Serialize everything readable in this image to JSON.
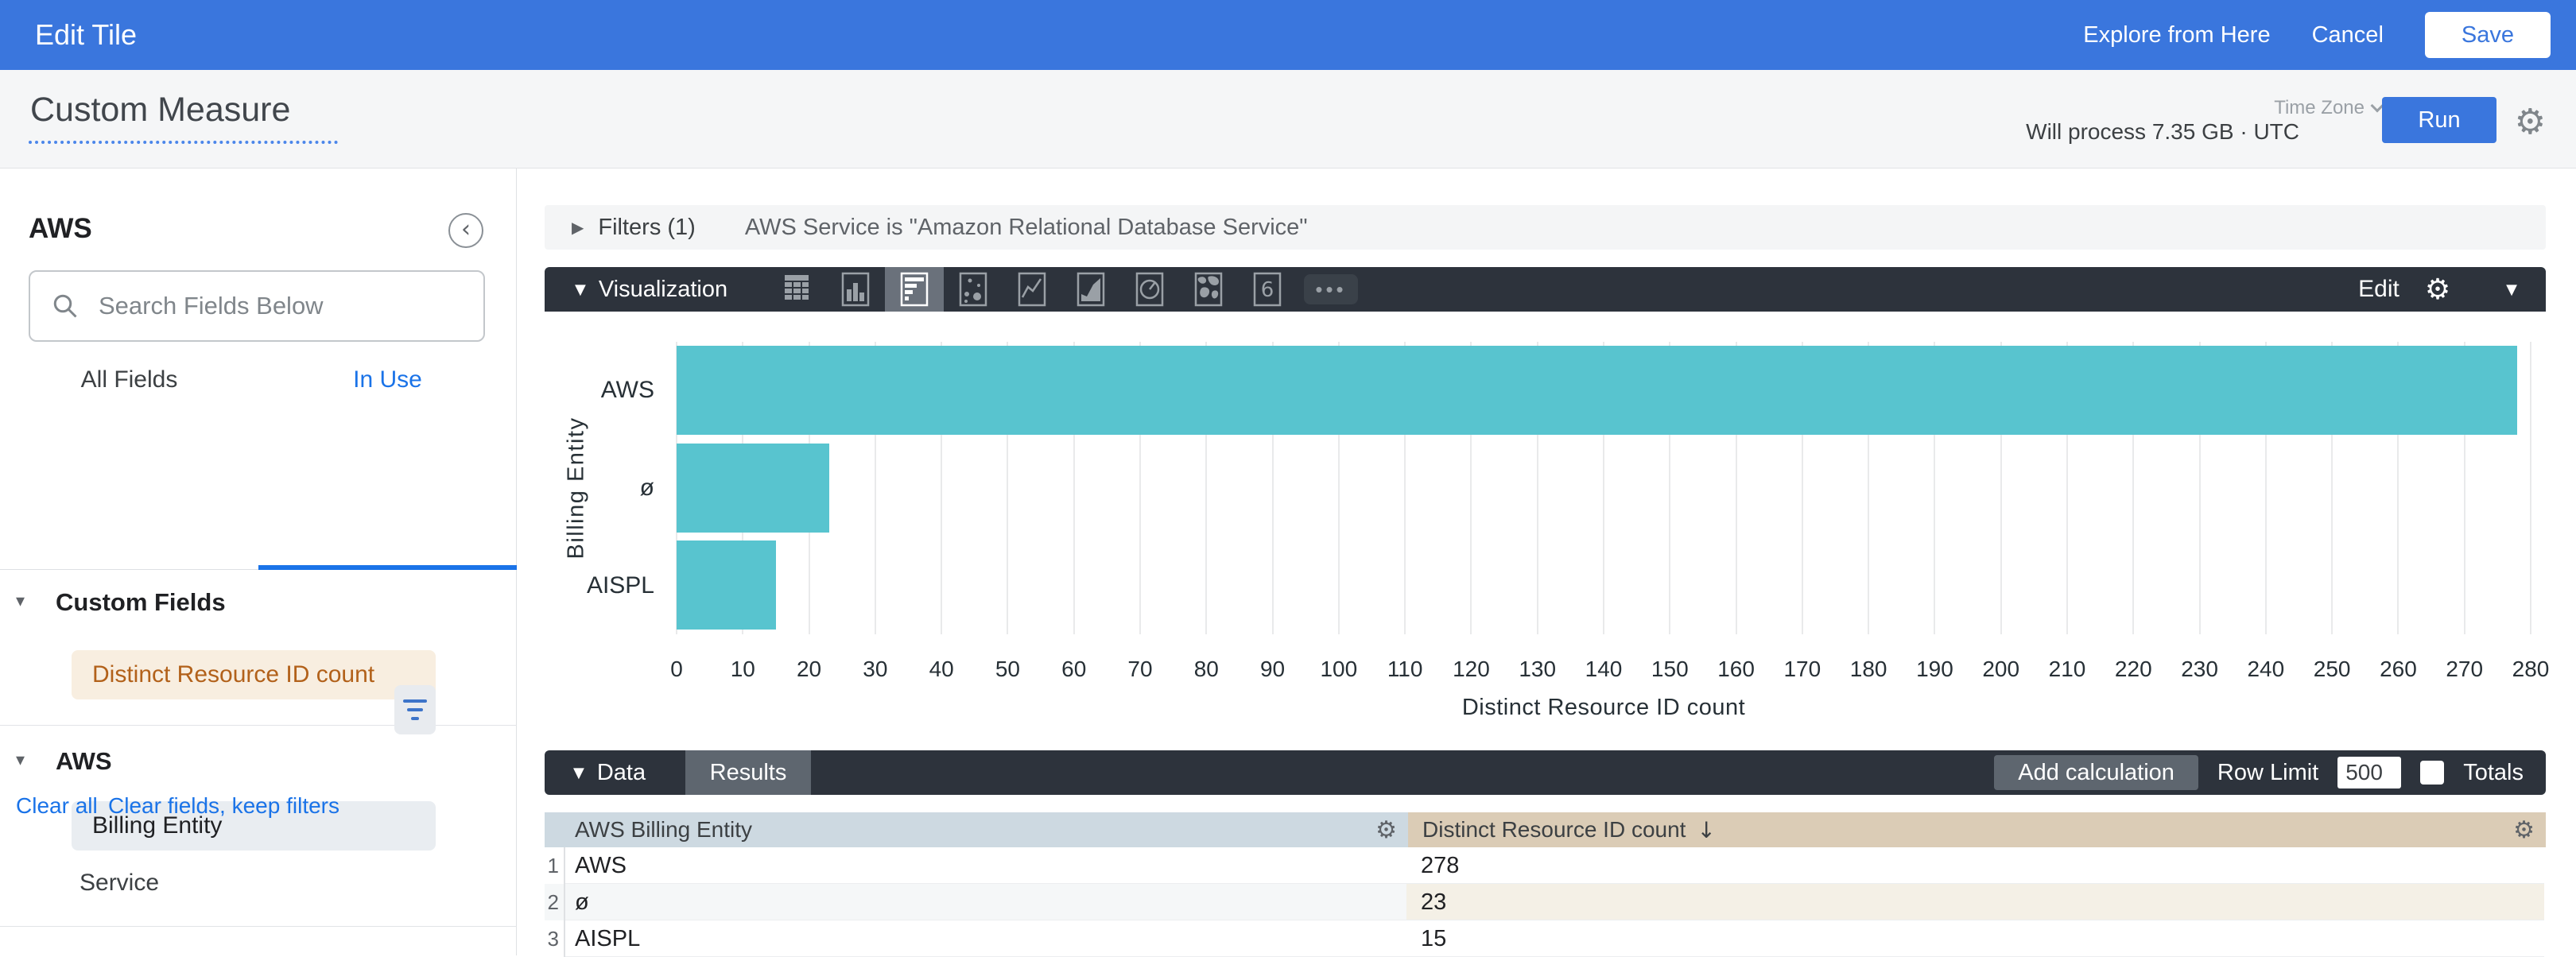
{
  "app": {
    "title": "Edit Tile",
    "explore_label": "Explore from Here",
    "cancel_label": "Cancel",
    "save_label": "Save"
  },
  "query_bar": {
    "title": "Custom Measure",
    "timezone_label": "Time Zone",
    "process_text": "Will process 7.35 GB · UTC",
    "run_label": "Run",
    "icons": [
      "gear-icon",
      "chevron-down-icon"
    ]
  },
  "sidebar": {
    "model_name": "AWS",
    "collapse_icon": "chevron-left-circle-icon",
    "search_placeholder": "Search Fields Below",
    "search_icon": "search-icon",
    "tabs": [
      {
        "label": "All Fields",
        "active": false
      },
      {
        "label": "In Use",
        "active": true
      }
    ],
    "sections": [
      {
        "label": "Custom Fields",
        "fields": [
          {
            "label": "Distinct Resource ID count",
            "type": "measure",
            "selected": true
          }
        ]
      },
      {
        "label": "AWS",
        "fields": [
          {
            "label": "Billing Entity",
            "type": "dimension",
            "selected": true
          },
          {
            "label": "Service",
            "type": "dimension",
            "selected": false,
            "filter_icon": "filter-list-icon"
          }
        ]
      }
    ],
    "clear_all_label": "Clear all",
    "clear_fields_label": "Clear fields, keep filters"
  },
  "filters": {
    "header": "Filters (1)",
    "summary": "AWS Service is \"Amazon Relational Database Service\""
  },
  "visualization": {
    "header": "Visualization",
    "edit_label": "Edit",
    "icons": [
      "table-chart-icon",
      "column-chart-icon",
      "bar-chart-icon",
      "scatter-chart-icon",
      "line-chart-icon",
      "area-chart-icon",
      "pie-chart-icon",
      "map-chart-icon",
      "single-value-icon",
      "more-viz-icon"
    ],
    "selected_icon": "bar-chart-icon",
    "settings_icons": [
      "gear-icon",
      "caret-down-icon"
    ]
  },
  "chart_data": {
    "type": "bar",
    "orientation": "horizontal",
    "title": "",
    "categories": [
      "AWS",
      "ø",
      "AISPL"
    ],
    "values": [
      278,
      23,
      15
    ],
    "series_name": "Distinct Resource ID count",
    "xlabel": "Distinct Resource ID count",
    "ylabel": "Billing Entity",
    "xlim": [
      0,
      280
    ],
    "tick_interval": 10,
    "grid": true,
    "legend": false,
    "bar_color": "#58c4cf"
  },
  "data_section": {
    "header": "Data",
    "results_tab_label": "Results",
    "add_calculation_label": "Add calculation",
    "row_limit_label": "Row Limit",
    "row_limit_value": "500",
    "totals_label": "Totals",
    "totals_checked": false,
    "table": {
      "columns": [
        {
          "label": "AWS Billing Entity",
          "type": "dimension",
          "icon": "gear-icon"
        },
        {
          "label": "Distinct Resource ID count",
          "type": "measure",
          "sort": "desc",
          "sort_icon": "arrow-down-icon",
          "icon": "gear-icon"
        }
      ],
      "rows": [
        {
          "num": "1",
          "dimension": "AWS",
          "measure": "278"
        },
        {
          "num": "2",
          "dimension": "ø",
          "measure": "23"
        },
        {
          "num": "3",
          "dimension": "AISPL",
          "measure": "15"
        }
      ]
    }
  },
  "colors": {
    "topbar_blue": "#3a76dd",
    "accent_blue": "#1a73e8",
    "dark_bar": "#2d333c",
    "dark_bar_active": "#5e666f",
    "bar_teal": "#58c4cf",
    "measure_orange": "#b2611a",
    "measure_bg": "#f8eee0",
    "measure_header_bg": "#dbccb6",
    "dimension_header_bg": "#cdd9e1"
  }
}
